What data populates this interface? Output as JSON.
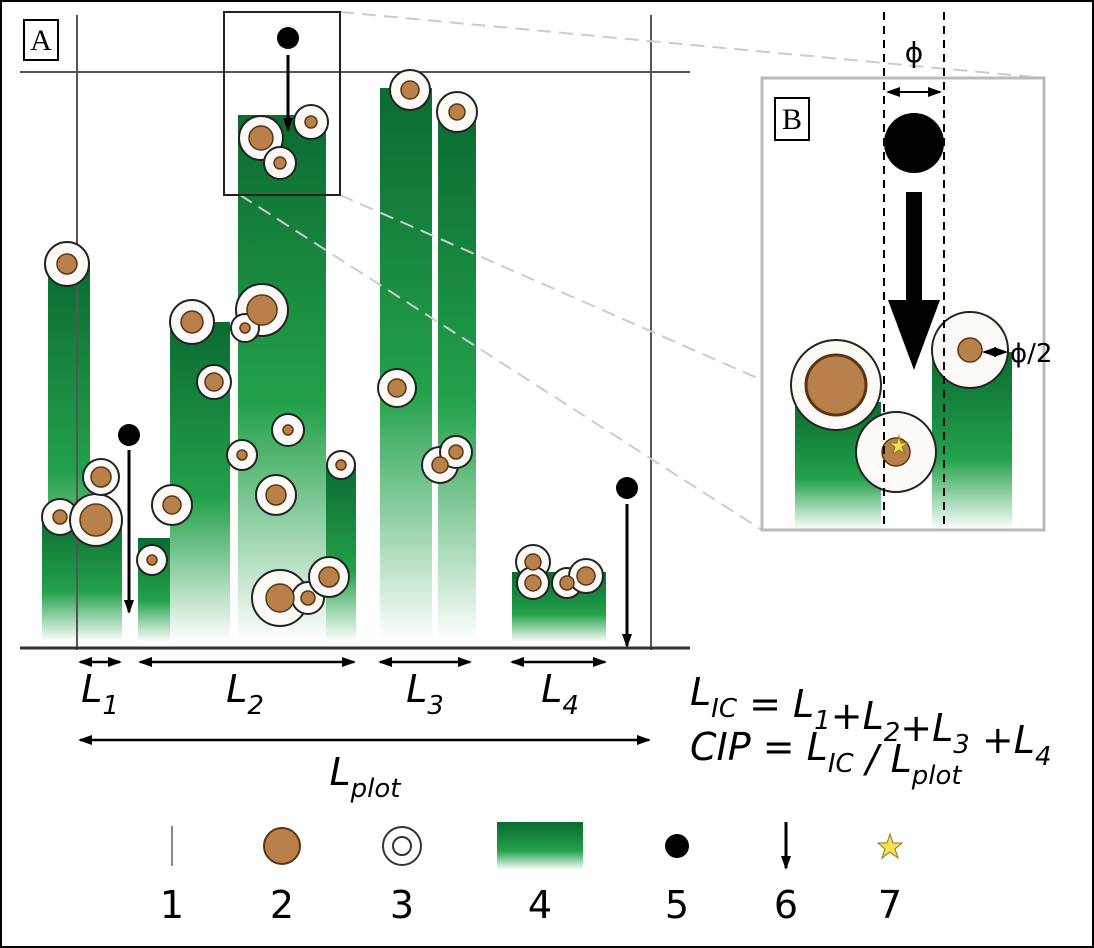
{
  "panels": {
    "a": {
      "label": "A"
    },
    "b": {
      "label": "B",
      "phi": "ϕ",
      "half_phi": "ϕ/2"
    }
  },
  "segments": [
    {
      "text": "L",
      "sub": "1"
    },
    {
      "text": "L",
      "sub": "2"
    },
    {
      "text": "L",
      "sub": "3"
    },
    {
      "text": "L",
      "sub": "4"
    }
  ],
  "plot_length": {
    "text": "L",
    "sub": "plot"
  },
  "equations": [
    [
      {
        "text": "L",
        "sub": "IC"
      },
      {
        "text": " = "
      },
      {
        "text": "L",
        "sub": "1"
      },
      {
        "text": "+"
      },
      {
        "text": "L",
        "sub": "2"
      },
      {
        "text": "+"
      },
      {
        "text": "L",
        "sub": "3"
      },
      {
        "text": " +"
      },
      {
        "text": "L",
        "sub": "4"
      }
    ],
    [
      {
        "text": "CIP = "
      },
      {
        "text": "L",
        "sub": "IC"
      },
      {
        "text": " / "
      },
      {
        "text": "L",
        "sub": "plot"
      }
    ]
  ],
  "legend": [
    "1",
    "2",
    "3",
    "4",
    "5",
    "6",
    "7"
  ]
}
